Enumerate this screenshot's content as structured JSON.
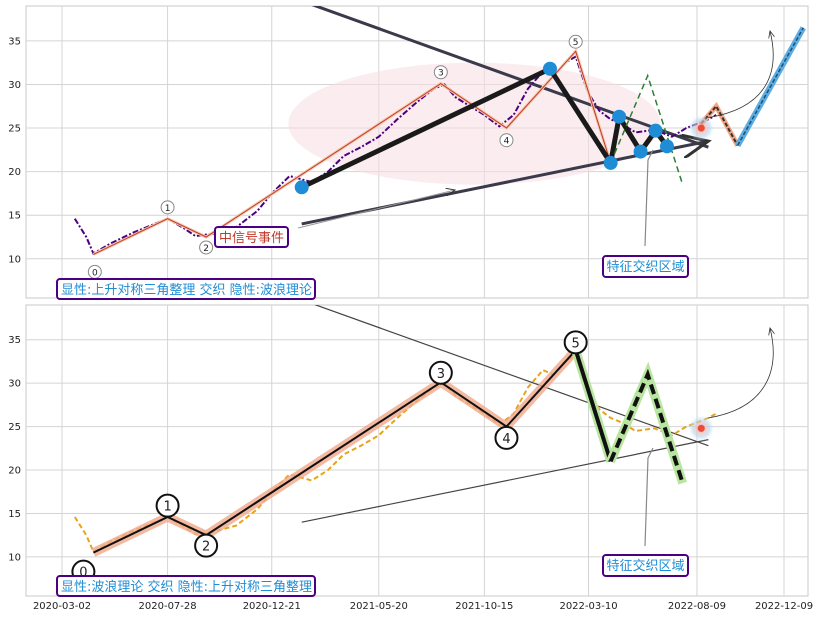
{
  "chart_data": [
    {
      "type": "line",
      "panel": "top",
      "annotation_box": "显性:上升对称三角整理 交织 隐性:波浪理论",
      "signal_label": "中信号事件",
      "zone_label": "特征交织区域",
      "x_ticks": [
        "2020-03-02",
        "2020-07-28",
        "2020-12-21",
        "2021-05-20",
        "2021-10-15",
        "2022-03-10",
        "2022-08-09",
        "2022-12-09"
      ],
      "y_ticks": [
        10,
        15,
        20,
        25,
        30,
        35
      ],
      "ylim": [
        5.5,
        39
      ],
      "grid": true,
      "series": [
        {
          "style": "dash-dot",
          "color": "#4b0082",
          "points": [
            [
              "2020-03-20",
              14.6
            ],
            [
              "2020-04-05",
              12.5
            ],
            [
              "2020-04-15",
              10.6
            ],
            [
              "2020-05-10",
              11.8
            ],
            [
              "2020-06-10",
              13.0
            ],
            [
              "2020-07-10",
              14.0
            ],
            [
              "2020-07-28",
              14.6
            ],
            [
              "2020-08-20",
              13.5
            ],
            [
              "2020-09-05",
              12.6
            ],
            [
              "2020-10-01",
              12.9
            ],
            [
              "2020-11-01",
              13.6
            ],
            [
              "2020-12-01",
              15.5
            ],
            [
              "2020-12-21",
              17.5
            ],
            [
              "2021-01-15",
              19.5
            ],
            [
              "2021-02-15",
              18.8
            ],
            [
              "2021-03-10",
              20.0
            ],
            [
              "2021-04-01",
              21.8
            ],
            [
              "2021-04-25",
              22.8
            ],
            [
              "2021-05-20",
              24.0
            ],
            [
              "2021-06-15",
              26.0
            ],
            [
              "2021-07-10",
              27.8
            ],
            [
              "2021-08-05",
              29.5
            ],
            [
              "2021-08-20",
              30.0
            ],
            [
              "2021-09-05",
              28.5
            ],
            [
              "2021-09-25",
              27.5
            ],
            [
              "2021-10-15",
              26.5
            ],
            [
              "2021-11-05",
              25.2
            ],
            [
              "2021-11-25",
              26.5
            ],
            [
              "2021-12-15",
              29.5
            ],
            [
              "2022-01-05",
              31.5
            ],
            [
              "2022-01-20",
              31.0
            ],
            [
              "2022-02-05",
              32.5
            ],
            [
              "2022-02-20",
              33.2
            ],
            [
              "2022-03-01",
              31.0
            ],
            [
              "2022-03-10",
              29.0
            ],
            [
              "2022-03-25",
              27.0
            ],
            [
              "2022-04-10",
              26.0
            ],
            [
              "2022-04-25",
              25.5
            ],
            [
              "2022-05-15",
              24.5
            ],
            [
              "2022-06-10",
              24.8
            ],
            [
              "2022-07-05",
              24.0
            ],
            [
              "2022-07-25",
              25.0
            ],
            [
              "2022-08-10",
              25.5
            ],
            [
              "2022-08-25",
              26.0
            ],
            [
              "2022-09-05",
              26.5
            ]
          ]
        },
        {
          "style": "thin-wave",
          "color": "#c0392b",
          "points": [
            [
              "2020-04-15",
              10.5
            ],
            [
              "2020-07-28",
              14.6
            ],
            [
              "2020-09-20",
              12.5
            ],
            [
              "2021-08-15",
              30.1
            ],
            [
              "2021-11-15",
              25.0
            ],
            [
              "2022-02-20",
              33.8
            ],
            [
              "2022-04-10",
              21.0
            ]
          ]
        },
        {
          "style": "thick-black",
          "color": "#1a1a1a",
          "points": [
            [
              "2021-02-01",
              18.2
            ],
            [
              "2022-01-15",
              31.8
            ],
            [
              "2022-04-10",
              21.0
            ],
            [
              "2022-04-22",
              26.3
            ],
            [
              "2022-05-22",
              22.3
            ],
            [
              "2022-06-12",
              24.7
            ],
            [
              "2022-06-28",
              22.9
            ]
          ]
        },
        {
          "style": "dashed-green",
          "color": "#2e7d32",
          "points": [
            [
              "2022-04-10",
              21.0
            ],
            [
              "2022-06-01",
              31.0
            ],
            [
              "2022-07-20",
              18.5
            ]
          ]
        },
        {
          "style": "red-projection",
          "color": "#d9534f",
          "points": [
            [
              "2022-08-15",
              25.5
            ],
            [
              "2022-09-05",
              27.5
            ],
            [
              "2022-10-05",
              23.0
            ]
          ]
        },
        {
          "style": "blue-projection",
          "color": "#2b8fc2",
          "points": [
            [
              "2022-10-05",
              23.0
            ],
            [
              "2023-01-05",
              36.5
            ]
          ]
        }
      ],
      "markers_blue": [
        [
          "2021-02-01",
          18.2
        ],
        [
          "2022-01-15",
          31.8
        ],
        [
          "2022-04-10",
          21.0
        ],
        [
          "2022-04-22",
          26.3
        ],
        [
          "2022-05-22",
          22.3
        ],
        [
          "2022-06-12",
          24.7
        ],
        [
          "2022-06-28",
          22.9
        ]
      ],
      "wave_labels": [
        {
          "label": "0",
          "x": "2020-04-17",
          "y": 8.5
        },
        {
          "label": "1",
          "x": "2020-07-28",
          "y": 15.9
        },
        {
          "label": "2",
          "x": "2020-09-20",
          "y": 11.3
        },
        {
          "label": "3",
          "x": "2021-08-15",
          "y": 31.4
        },
        {
          "label": "4",
          "x": "2021-11-15",
          "y": 23.6
        },
        {
          "label": "5",
          "x": "2022-02-20",
          "y": 34.9
        }
      ],
      "trend_lines": [
        {
          "from": [
            "2020-12-15",
            41.0
          ],
          "to": [
            "2022-08-25",
            22.8
          ]
        },
        {
          "from": [
            "2021-02-01",
            14.0
          ],
          "to": [
            "2022-08-25",
            23.5
          ]
        }
      ]
    },
    {
      "type": "line",
      "panel": "bottom",
      "annotation_box": "显性:波浪理论 交织 隐性:上升对称三角整理",
      "zone_label": "特征交织区域",
      "x_ticks": [
        "2020-03-02",
        "2020-07-28",
        "2020-12-21",
        "2021-05-20",
        "2021-10-15",
        "2022-03-10",
        "2022-08-09",
        "2022-12-09"
      ],
      "y_ticks": [
        10,
        15,
        20,
        25,
        30,
        35
      ],
      "ylim": [
        5.5,
        39
      ],
      "grid": true,
      "series": [
        {
          "style": "dashed-price",
          "color": "#e8a317",
          "points": [
            [
              "2020-03-20",
              14.6
            ],
            [
              "2020-04-05",
              12.5
            ],
            [
              "2020-04-15",
              10.6
            ],
            [
              "2020-05-10",
              11.8
            ],
            [
              "2020-06-10",
              13.0
            ],
            [
              "2020-07-10",
              14.0
            ],
            [
              "2020-07-28",
              14.6
            ],
            [
              "2020-08-20",
              13.5
            ],
            [
              "2020-09-05",
              12.6
            ],
            [
              "2020-10-01",
              12.9
            ],
            [
              "2020-11-01",
              13.6
            ],
            [
              "2020-12-01",
              15.5
            ],
            [
              "2020-12-21",
              17.5
            ],
            [
              "2021-01-15",
              19.5
            ],
            [
              "2021-02-15",
              18.8
            ],
            [
              "2021-03-10",
              20.0
            ],
            [
              "2021-04-01",
              21.8
            ],
            [
              "2021-04-25",
              22.8
            ],
            [
              "2021-05-20",
              24.0
            ],
            [
              "2021-06-15",
              26.0
            ],
            [
              "2021-07-10",
              27.8
            ],
            [
              "2021-08-05",
              29.5
            ],
            [
              "2021-08-20",
              30.0
            ],
            [
              "2021-09-05",
              28.5
            ],
            [
              "2021-09-25",
              27.5
            ],
            [
              "2021-10-15",
              26.5
            ],
            [
              "2021-11-05",
              25.2
            ],
            [
              "2021-11-25",
              26.5
            ],
            [
              "2021-12-15",
              29.5
            ],
            [
              "2022-01-05",
              31.5
            ],
            [
              "2022-01-20",
              31.0
            ],
            [
              "2022-02-05",
              32.5
            ],
            [
              "2022-02-20",
              33.2
            ],
            [
              "2022-03-01",
              31.0
            ],
            [
              "2022-03-10",
              29.0
            ],
            [
              "2022-03-25",
              27.0
            ],
            [
              "2022-04-10",
              26.0
            ],
            [
              "2022-04-25",
              25.5
            ],
            [
              "2022-05-15",
              24.5
            ],
            [
              "2022-06-10",
              24.8
            ],
            [
              "2022-07-05",
              24.0
            ],
            [
              "2022-07-25",
              25.0
            ],
            [
              "2022-08-10",
              25.5
            ],
            [
              "2022-08-25",
              26.0
            ],
            [
              "2022-09-05",
              26.5
            ]
          ]
        },
        {
          "style": "wave-black",
          "color": "#111111",
          "points": [
            [
              "2020-04-15",
              10.5
            ],
            [
              "2020-07-28",
              14.6
            ],
            [
              "2020-09-20",
              12.5
            ],
            [
              "2021-08-15",
              30.1
            ],
            [
              "2021-11-15",
              25.0
            ],
            [
              "2022-02-20",
              33.8
            ]
          ]
        },
        {
          "style": "wave-down",
          "color": "#111111",
          "points": [
            [
              "2022-02-20",
              33.8
            ],
            [
              "2022-04-10",
              21.0
            ]
          ]
        },
        {
          "style": "dashed-black",
          "color": "#111111",
          "points": [
            [
              "2022-04-10",
              21.0
            ],
            [
              "2022-06-01",
              31.0
            ],
            [
              "2022-07-20",
              18.5
            ]
          ]
        }
      ],
      "wave_labels": [
        {
          "label": "0",
          "x": "2020-04-01",
          "y": 8.3
        },
        {
          "label": "1",
          "x": "2020-07-28",
          "y": 15.9
        },
        {
          "label": "2",
          "x": "2020-09-20",
          "y": 11.3
        },
        {
          "label": "3",
          "x": "2021-08-15",
          "y": 31.2
        },
        {
          "label": "4",
          "x": "2021-11-15",
          "y": 23.7
        },
        {
          "label": "5",
          "x": "2022-02-20",
          "y": 34.7
        }
      ],
      "trend_lines": [
        {
          "from": [
            "2020-12-15",
            41.0
          ],
          "to": [
            "2022-08-25",
            22.8
          ]
        },
        {
          "from": [
            "2021-02-01",
            14.0
          ],
          "to": [
            "2022-08-25",
            23.5
          ]
        }
      ]
    }
  ]
}
